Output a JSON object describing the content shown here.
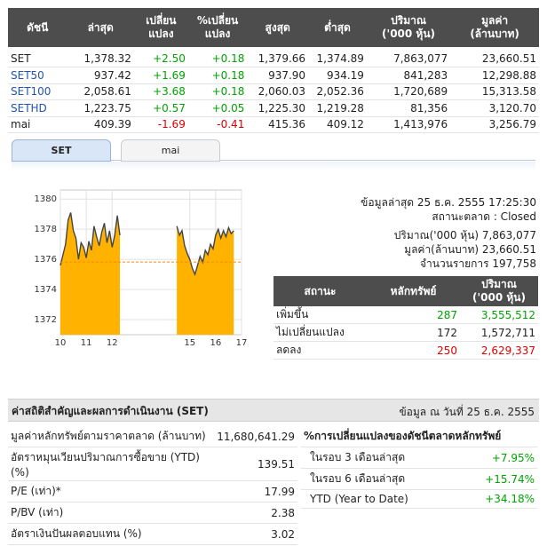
{
  "index_table": {
    "headers": [
      "ดัชนี",
      "ล่าสุด",
      "เปลี่ยน\nแปลง",
      "%เปลี่ยน\nแปลง",
      "สูงสุด",
      "ต่ำสุด",
      "ปริมาณ\n('000 หุ้น)",
      "มูลค่า\n(ล้านบาท)"
    ],
    "rows": [
      {
        "name": "SET",
        "link": false,
        "last": "1,378.32",
        "chg": "+2.50",
        "pct": "+0.18",
        "high": "1,379.66",
        "low": "1,374.89",
        "vol": "7,863,077",
        "val": "23,660.51",
        "dir": "pos"
      },
      {
        "name": "SET50",
        "link": true,
        "last": "937.42",
        "chg": "+1.69",
        "pct": "+0.18",
        "high": "937.90",
        "low": "934.19",
        "vol": "841,283",
        "val": "12,298.88",
        "dir": "pos"
      },
      {
        "name": "SET100",
        "link": true,
        "last": "2,058.61",
        "chg": "+3.68",
        "pct": "+0.18",
        "high": "2,060.03",
        "low": "2,052.36",
        "vol": "1,720,689",
        "val": "15,313.58",
        "dir": "pos"
      },
      {
        "name": "SETHD",
        "link": true,
        "last": "1,223.75",
        "chg": "+0.57",
        "pct": "+0.05",
        "high": "1,225.30",
        "low": "1,219.28",
        "vol": "81,356",
        "val": "3,120.70",
        "dir": "pos"
      },
      {
        "name": "mai",
        "link": false,
        "last": "409.39",
        "chg": "-1.69",
        "pct": "-0.41",
        "high": "415.36",
        "low": "409.12",
        "vol": "1,413,976",
        "val": "3,256.79",
        "dir": "neg"
      }
    ]
  },
  "tabs": [
    {
      "label": "SET",
      "active": true
    },
    {
      "label": "mai",
      "active": false
    }
  ],
  "chart_data": {
    "type": "area",
    "title": "",
    "xlabel": "",
    "ylabel": "",
    "x_ticks": [
      "10",
      "11",
      "12",
      "15",
      "16",
      "17"
    ],
    "y_ticks": [
      1372,
      1374,
      1376,
      1378,
      1380
    ],
    "ylim": [
      1371,
      1380.6
    ],
    "grid": true,
    "fill_color": "#ffb300",
    "line_color": "#444444",
    "reference_value": 1375.82,
    "sessions": [
      {
        "name": "morning",
        "x": [
          10.0,
          10.1,
          10.2,
          10.3,
          10.4,
          10.5,
          10.6,
          10.7,
          10.8,
          10.9,
          11.0,
          11.1,
          11.2,
          11.3,
          11.4,
          11.5,
          11.6,
          11.7,
          11.8,
          11.9,
          12.0,
          12.1,
          12.2,
          12.3
        ],
        "y": [
          1375.6,
          1376.3,
          1377.0,
          1378.6,
          1379.1,
          1377.9,
          1377.4,
          1376.0,
          1377.1,
          1376.8,
          1376.1,
          1377.2,
          1376.6,
          1378.2,
          1377.5,
          1376.9,
          1377.8,
          1378.4,
          1377.1,
          1377.9,
          1376.8,
          1377.6,
          1378.9,
          1377.6
        ]
      },
      {
        "name": "afternoon",
        "x": [
          14.5,
          14.6,
          14.7,
          14.8,
          14.9,
          15.0,
          15.1,
          15.2,
          15.3,
          15.4,
          15.5,
          15.6,
          15.7,
          15.8,
          15.9,
          16.0,
          16.1,
          16.2,
          16.3,
          16.4,
          16.5,
          16.6,
          16.7
        ],
        "y": [
          1378.2,
          1377.6,
          1377.9,
          1376.9,
          1376.4,
          1376.0,
          1375.4,
          1375.0,
          1375.6,
          1376.2,
          1375.8,
          1376.6,
          1376.3,
          1377.0,
          1376.7,
          1377.6,
          1378.0,
          1377.4,
          1377.9,
          1377.5,
          1378.1,
          1377.7,
          1377.9
        ]
      }
    ]
  },
  "info": {
    "updated": "ข้อมูลล่าสุด 25 ธ.ค. 2555 17:25:30",
    "market_status": "สถานะตลาด : Closed",
    "volume": "ปริมาณ('000 หุ้น) 7,863,077",
    "value": "มูลค่า(ล้านบาท) 23,660.51",
    "trades": "จำนวนรายการ 197,758"
  },
  "status_table": {
    "headers": [
      "สถานะ",
      "หลักทรัพย์",
      "ปริมาณ\n('000 หุ้น)"
    ],
    "rows": [
      {
        "label": "เพิ่มขึ้น",
        "count": "287",
        "vol": "3,555,512",
        "dir": "pos"
      },
      {
        "label": "ไม่เปลี่ยนแปลง",
        "count": "172",
        "vol": "1,572,711",
        "dir": "neutral"
      },
      {
        "label": "ลดลง",
        "count": "250",
        "vol": "2,629,337",
        "dir": "neg"
      }
    ]
  },
  "stats": {
    "title": "ค่าสถิติสำคัญและผลการดำเนินงาน (SET)",
    "date": "ข้อมูล ณ วันที่ 25 ธ.ค. 2555",
    "left": [
      {
        "label": "มูลค่าหลักทรัพย์ตามราคาตลาด (ล้านบาท)",
        "value": "11,680,641.29"
      },
      {
        "label": "อัตราหมุนเวียนปริมาณการซื้อขาย (YTD) (%)",
        "value": "139.51"
      },
      {
        "label": "P/E (เท่า)*",
        "value": "17.99"
      },
      {
        "label": "P/BV (เท่า)",
        "value": "2.38"
      },
      {
        "label": "อัตราเงินปันผลตอบแทน (%)",
        "value": "3.02"
      }
    ],
    "right_title": "%การเปลี่ยนแปลงของดัชนีตลาดหลักทรัพย์",
    "right": [
      {
        "label": "ในรอบ 3 เดือนล่าสุด",
        "value": "+7.95%"
      },
      {
        "label": "ในรอบ 6 เดือนล่าสุด",
        "value": "+15.74%"
      },
      {
        "label": "YTD (Year to Date)",
        "value": "+34.18%"
      }
    ]
  }
}
